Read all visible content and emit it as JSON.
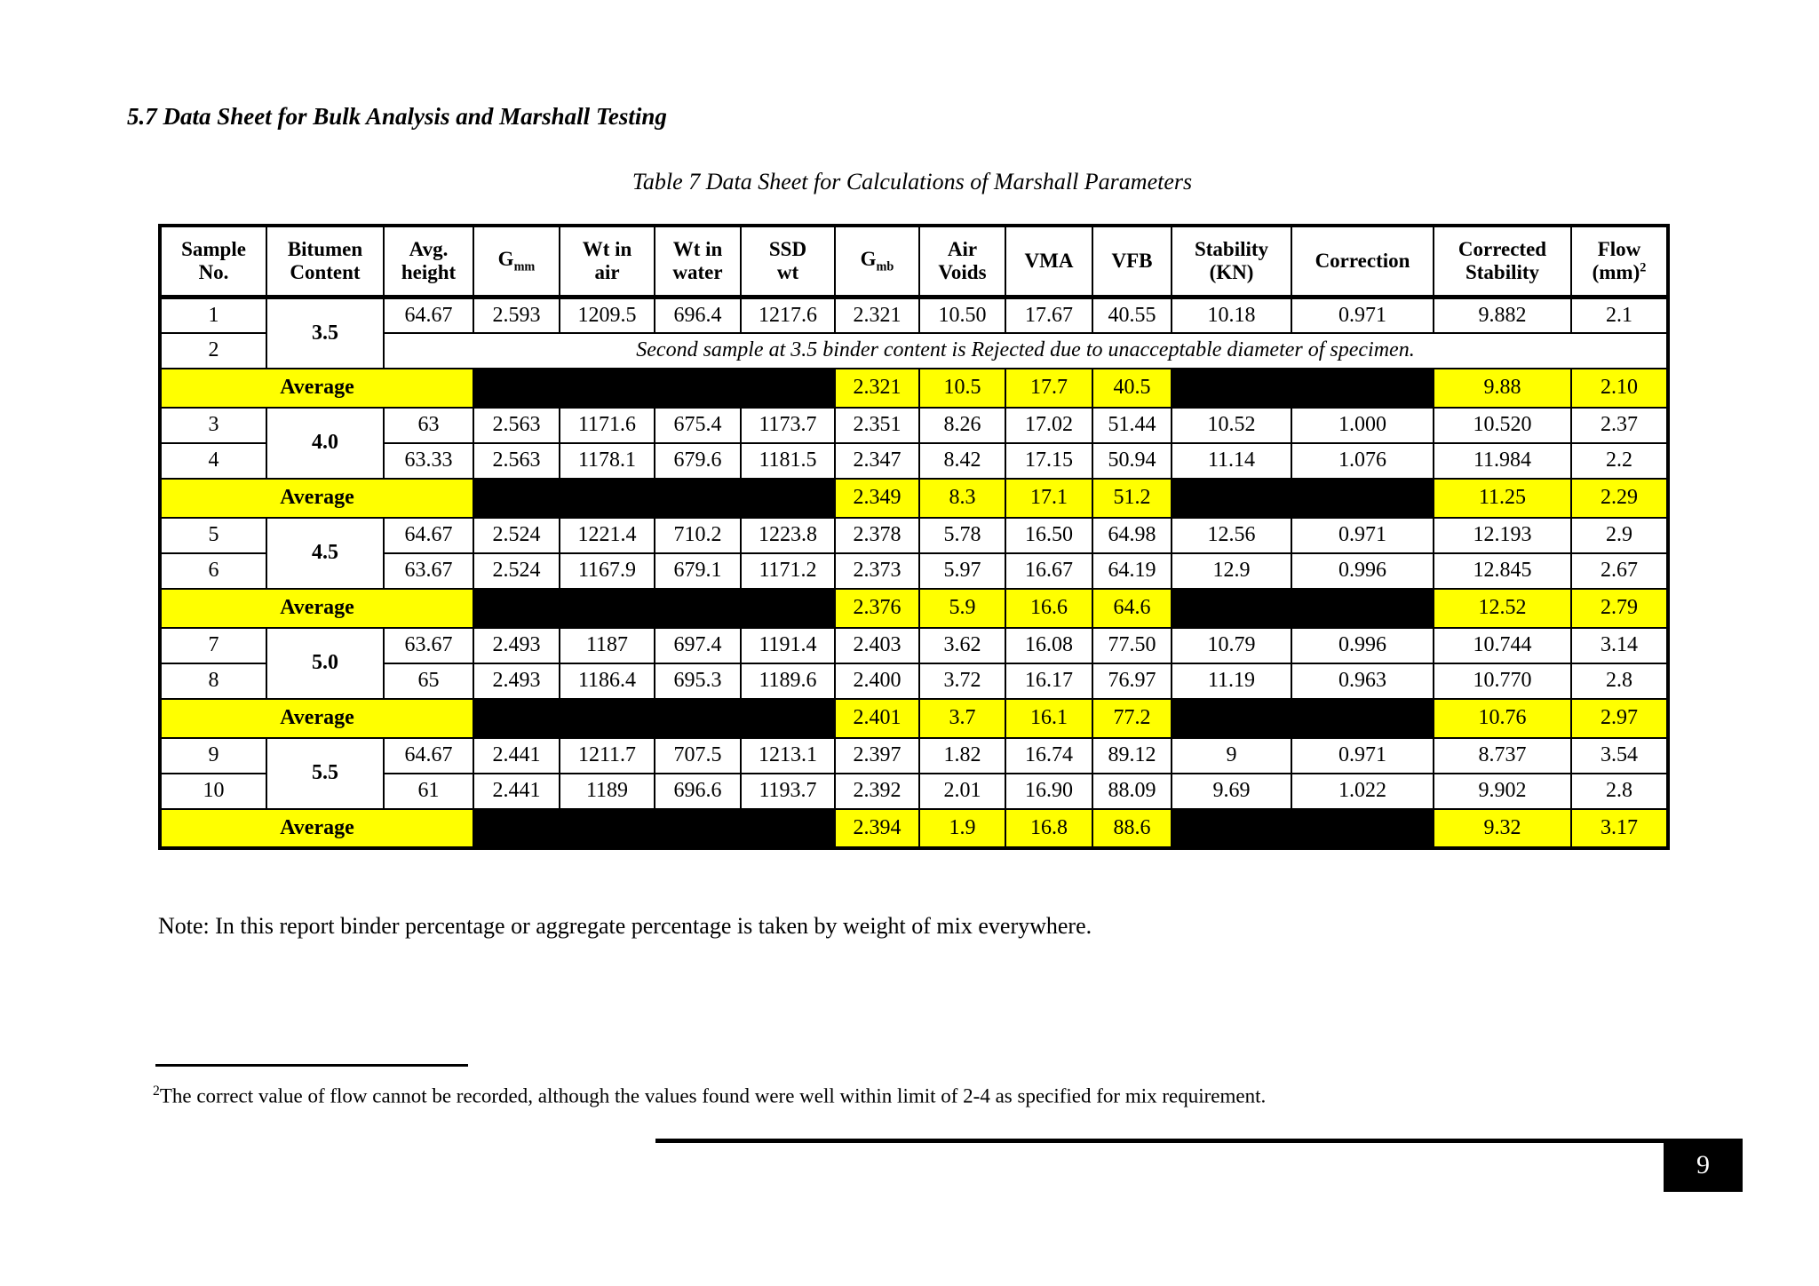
{
  "page": {
    "section_title": "5.7 Data Sheet for Bulk Analysis and Marshall Testing",
    "table_caption": "Table 7 Data Sheet for Calculations of Marshall Parameters",
    "note": "Note: In this report binder percentage or aggregate percentage is taken by weight of mix everywhere.",
    "footnote_marker": "2",
    "footnote_text": "The correct value of flow cannot be recorded, although the values found were well within limit of 2-4 as specified for mix requirement.",
    "page_number": "9"
  },
  "colors": {
    "highlight_yellow": "#FFFF00",
    "blackout": "#000000",
    "border": "#000000",
    "page_number_bg": "#000000",
    "page_number_text": "#FFFFFF"
  },
  "table": {
    "headers": [
      "Sample|No.",
      "Bitumen|Content",
      "Avg.|height",
      "G_mm",
      "Wt in|air",
      "Wt in|water",
      "SSD|wt",
      "G_mb",
      "Air|Voids",
      "VMA",
      "VFB",
      "Stability|(KN)",
      "Correction",
      "Corrected|Stability",
      "Flow|(mm)^2"
    ],
    "rows": [
      {
        "type": "sample",
        "no": "1",
        "bitumen": "3.5",
        "values": [
          "64.67",
          "2.593",
          "1209.5",
          "696.4",
          "1217.6",
          "2.321",
          "10.50",
          "17.67",
          "40.55",
          "10.18",
          "0.971",
          "9.882",
          "2.1"
        ]
      },
      {
        "type": "rejected",
        "no": "2",
        "text": "Second sample at 3.5 binder content is Rejected due to unacceptable diameter of specimen."
      },
      {
        "type": "average",
        "label": "Average",
        "values": [
          "2.321",
          "10.5",
          "17.7",
          "40.5",
          "9.88",
          "2.10"
        ]
      },
      {
        "type": "sample",
        "no": "3",
        "bitumen": "4.0",
        "values": [
          "63",
          "2.563",
          "1171.6",
          "675.4",
          "1173.7",
          "2.351",
          "8.26",
          "17.02",
          "51.44",
          "10.52",
          "1.000",
          "10.520",
          "2.37"
        ]
      },
      {
        "type": "sample",
        "no": "4",
        "values": [
          "63.33",
          "2.563",
          "1178.1",
          "679.6",
          "1181.5",
          "2.347",
          "8.42",
          "17.15",
          "50.94",
          "11.14",
          "1.076",
          "11.984",
          "2.2"
        ]
      },
      {
        "type": "average",
        "label": "Average",
        "values": [
          "2.349",
          "8.3",
          "17.1",
          "51.2",
          "11.25",
          "2.29"
        ]
      },
      {
        "type": "sample",
        "no": "5",
        "bitumen": "4.5",
        "values": [
          "64.67",
          "2.524",
          "1221.4",
          "710.2",
          "1223.8",
          "2.378",
          "5.78",
          "16.50",
          "64.98",
          "12.56",
          "0.971",
          "12.193",
          "2.9"
        ]
      },
      {
        "type": "sample",
        "no": "6",
        "values": [
          "63.67",
          "2.524",
          "1167.9",
          "679.1",
          "1171.2",
          "2.373",
          "5.97",
          "16.67",
          "64.19",
          "12.9",
          "0.996",
          "12.845",
          "2.67"
        ]
      },
      {
        "type": "average",
        "label": "Average",
        "values": [
          "2.376",
          "5.9",
          "16.6",
          "64.6",
          "12.52",
          "2.79"
        ]
      },
      {
        "type": "sample",
        "no": "7",
        "bitumen": "5.0",
        "values": [
          "63.67",
          "2.493",
          "1187",
          "697.4",
          "1191.4",
          "2.403",
          "3.62",
          "16.08",
          "77.50",
          "10.79",
          "0.996",
          "10.744",
          "3.14"
        ]
      },
      {
        "type": "sample",
        "no": "8",
        "values": [
          "65",
          "2.493",
          "1186.4",
          "695.3",
          "1189.6",
          "2.400",
          "3.72",
          "16.17",
          "76.97",
          "11.19",
          "0.963",
          "10.770",
          "2.8"
        ]
      },
      {
        "type": "average",
        "label": "Average",
        "values": [
          "2.401",
          "3.7",
          "16.1",
          "77.2",
          "10.76",
          "2.97"
        ]
      },
      {
        "type": "sample",
        "no": "9",
        "bitumen": "5.5",
        "values": [
          "64.67",
          "2.441",
          "1211.7",
          "707.5",
          "1213.1",
          "2.397",
          "1.82",
          "16.74",
          "89.12",
          "9",
          "0.971",
          "8.737",
          "3.54"
        ]
      },
      {
        "type": "sample",
        "no": "10",
        "values": [
          "61",
          "2.441",
          "1189",
          "696.6",
          "1193.7",
          "2.392",
          "2.01",
          "16.90",
          "88.09",
          "9.69",
          "1.022",
          "9.902",
          "2.8"
        ]
      },
      {
        "type": "average",
        "label": "Average",
        "values": [
          "2.394",
          "1.9",
          "16.8",
          "88.6",
          "9.32",
          "3.17"
        ]
      }
    ]
  }
}
